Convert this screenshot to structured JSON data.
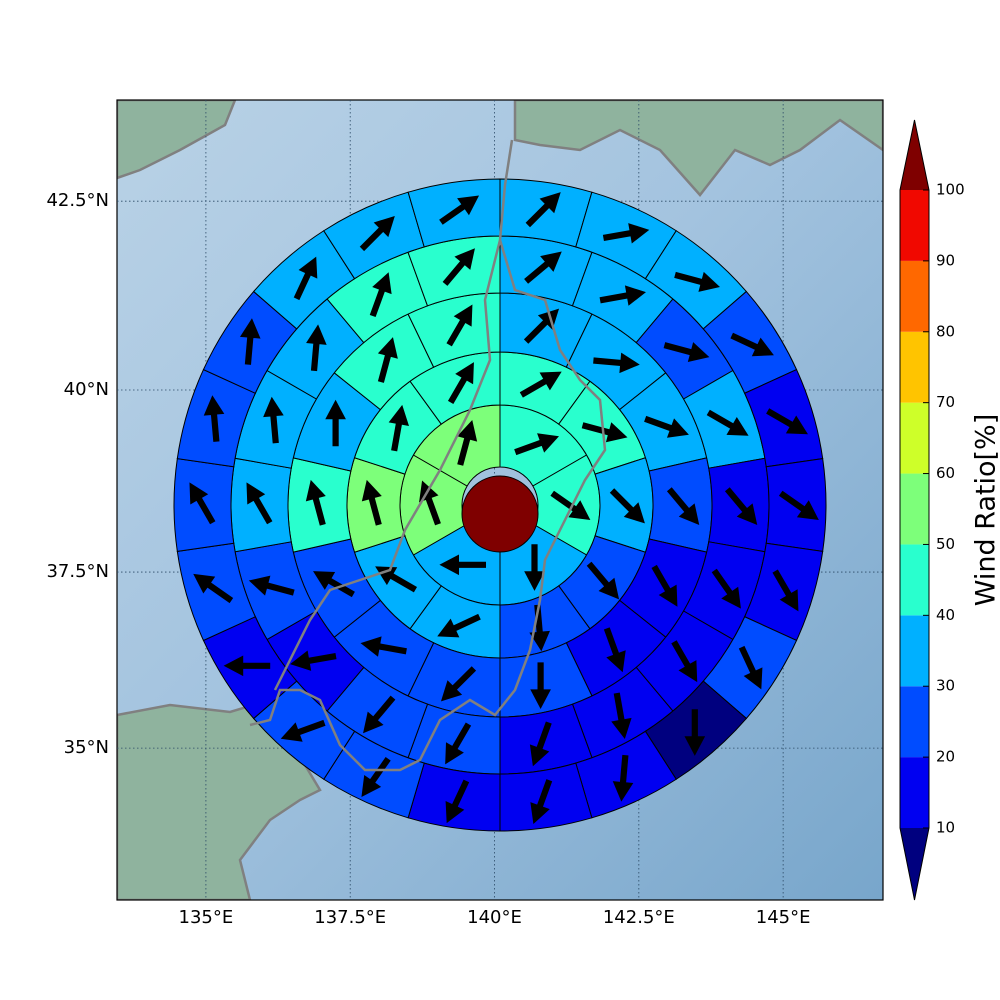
{
  "chart_data": {
    "type": "polar-sector-map",
    "projection": "mercator",
    "grid": true,
    "xlim": [
      133.46,
      146.73
    ],
    "ylim": [
      32.78,
      43.8
    ],
    "xticks": [
      {
        "value": 135,
        "label": "135°E"
      },
      {
        "value": 137.5,
        "label": "137.5°E"
      },
      {
        "value": 140,
        "label": "140°E"
      },
      {
        "value": 142.5,
        "label": "142.5°E"
      },
      {
        "value": 145,
        "label": "145°E"
      }
    ],
    "yticks": [
      {
        "value": 35,
        "label": "35°N"
      },
      {
        "value": 37.5,
        "label": "37.5°N"
      },
      {
        "value": 40,
        "label": "40°N"
      },
      {
        "value": 42.5,
        "label": "42.5°N"
      }
    ],
    "colorbar": {
      "label": "Wind Ratio[%]",
      "extend": "both",
      "ticks": [
        10,
        20,
        30,
        40,
        50,
        60,
        70,
        80,
        90,
        100
      ],
      "colors": [
        "#0000f1",
        "#004cff",
        "#00b0ff",
        "#29ffce",
        "#7dff7a",
        "#ceff29",
        "#ffc400",
        "#ff6800",
        "#f10800"
      ],
      "under_color": "#00007f",
      "over_color": "#7f0000"
    },
    "rings": [
      {
        "values": [
          45,
          45,
          35,
          35,
          55,
          55
        ],
        "directions": [
          70,
          125,
          180,
          270,
          340,
          15
        ]
      },
      {
        "values": [
          45,
          45,
          35,
          25,
          25,
          35,
          35,
          55,
          45,
          45
        ],
        "directions": [
          60,
          105,
          135,
          140,
          175,
          245,
          300,
          345,
          10,
          30
        ]
      },
      {
        "values": [
          35,
          35,
          35,
          25,
          15,
          15,
          25,
          25,
          25,
          25,
          45,
          35,
          45,
          45
        ],
        "directions": [
          45,
          95,
          110,
          140,
          150,
          160,
          180,
          225,
          280,
          300,
          345,
          0,
          15,
          30
        ]
      },
      {
        "values": [
          35,
          35,
          25,
          35,
          15,
          15,
          15,
          15,
          15,
          25,
          25,
          15,
          25,
          35,
          35,
          35,
          45,
          45
        ],
        "directions": [
          50,
          80,
          105,
          120,
          140,
          145,
          150,
          170,
          200,
          210,
          220,
          260,
          285,
          330,
          355,
          5,
          20,
          40
        ]
      },
      {
        "values": [
          35,
          35,
          35,
          25,
          15,
          15,
          15,
          25,
          5,
          15,
          15,
          15,
          25,
          25,
          15,
          25,
          25,
          25,
          25,
          35,
          35,
          35
        ],
        "directions": [
          45,
          80,
          105,
          115,
          120,
          125,
          150,
          155,
          180,
          185,
          200,
          205,
          215,
          250,
          270,
          305,
          330,
          355,
          5,
          25,
          45,
          55
        ]
      }
    ]
  }
}
